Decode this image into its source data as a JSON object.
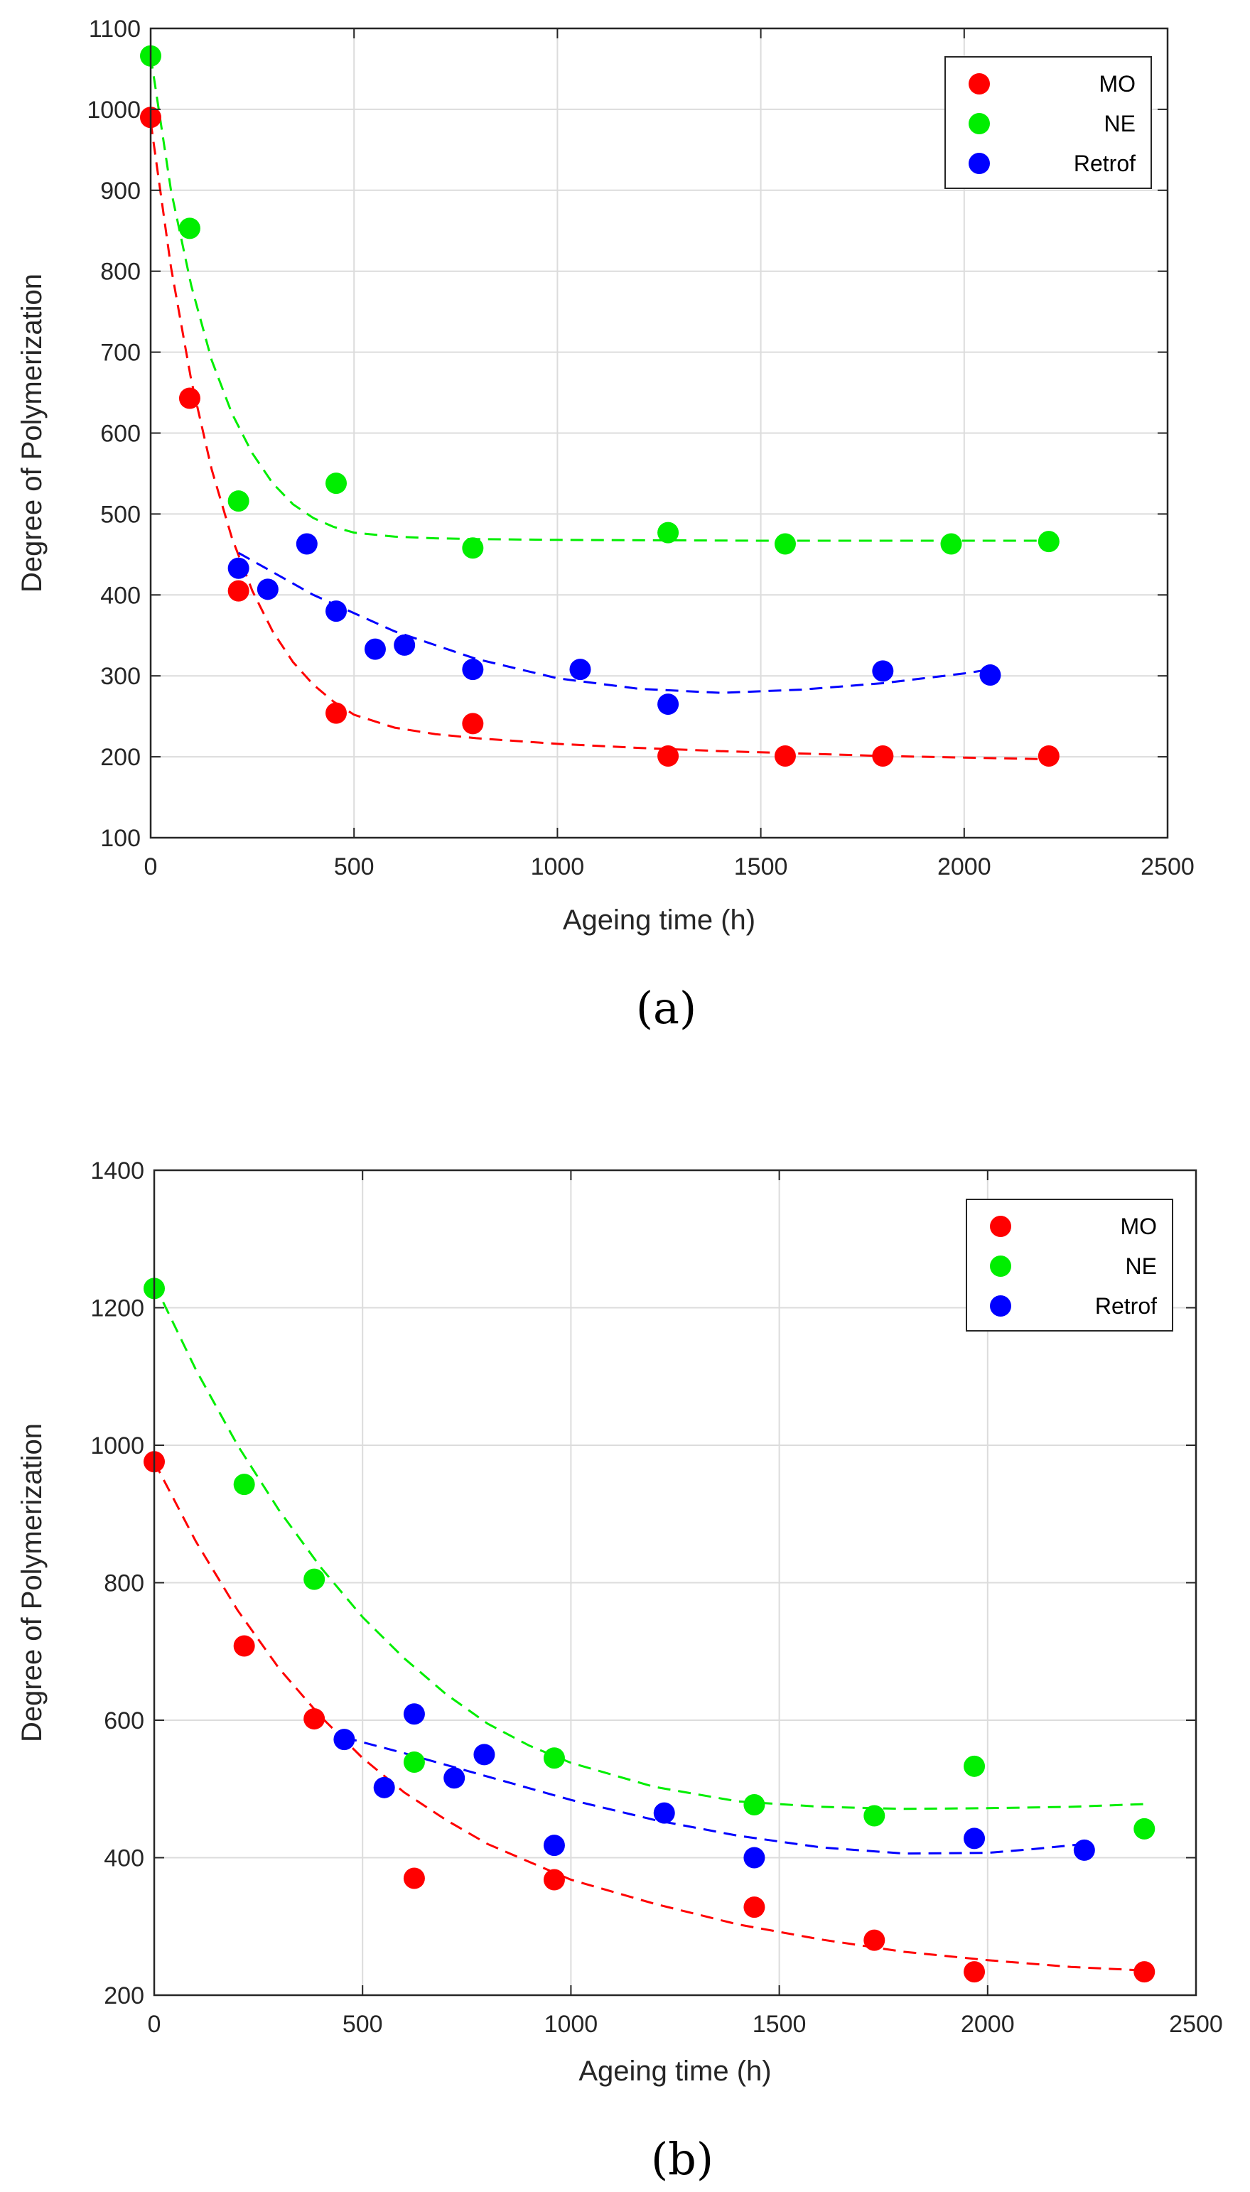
{
  "chart_data": [
    {
      "type": "scatter",
      "panel": "a",
      "caption": "(a)",
      "xlabel": "Ageing time (h)",
      "ylabel": "Degree of Polymerization",
      "xlim": [
        0,
        2500
      ],
      "ylim": [
        100,
        1100
      ],
      "xticks": [
        0,
        500,
        1000,
        1500,
        2000,
        2500
      ],
      "yticks": [
        100,
        200,
        300,
        400,
        500,
        600,
        700,
        800,
        900,
        1000,
        1100
      ],
      "grid": true,
      "legend_position": "top-right",
      "series": [
        {
          "name": "MO",
          "color": "#ff0000",
          "x": [
            0,
            96,
            216,
            456,
            792,
            1272,
            1560,
            1800,
            2208
          ],
          "y": [
            990,
            643,
            405,
            254,
            241,
            201,
            201,
            201,
            201
          ],
          "fit": [
            [
              0,
              985
            ],
            [
              50,
              805
            ],
            [
              100,
              665
            ],
            [
              150,
              555
            ],
            [
              200,
              470
            ],
            [
              250,
              405
            ],
            [
              300,
              355
            ],
            [
              350,
              317
            ],
            [
              400,
              289
            ],
            [
              450,
              268
            ],
            [
              500,
              252
            ],
            [
              600,
              236
            ],
            [
              700,
              228
            ],
            [
              800,
              223
            ],
            [
              1000,
              216
            ],
            [
              1200,
              211
            ],
            [
              1400,
              207
            ],
            [
              1600,
              204
            ],
            [
              1800,
              201
            ],
            [
              2000,
              199
            ],
            [
              2208,
              197
            ]
          ]
        },
        {
          "name": "NE",
          "color": "#00ee00",
          "x": [
            0,
            96,
            216,
            456,
            792,
            1272,
            1560,
            1968,
            2208
          ],
          "y": [
            1066,
            853,
            516,
            538,
            458,
            477,
            463,
            463,
            466
          ],
          "fit": [
            [
              0,
              1066
            ],
            [
              50,
              900
            ],
            [
              100,
              782
            ],
            [
              150,
              690
            ],
            [
              200,
              624
            ],
            [
              250,
              575
            ],
            [
              300,
              538
            ],
            [
              350,
              512
            ],
            [
              400,
              495
            ],
            [
              450,
              484
            ],
            [
              500,
              477
            ],
            [
              600,
              472
            ],
            [
              700,
              470
            ],
            [
              800,
              469
            ],
            [
              1000,
              468
            ],
            [
              1500,
              467
            ],
            [
              2000,
              467
            ],
            [
              2208,
              467
            ]
          ]
        },
        {
          "name": "Retrof",
          "color": "#0000ff",
          "x": [
            216,
            288,
            384,
            456,
            552,
            624,
            792,
            1056,
            1272,
            1800,
            2064
          ],
          "y": [
            433,
            407,
            463,
            380,
            333,
            338,
            308,
            308,
            265,
            306,
            301
          ],
          "fit": [
            [
              216,
              452
            ],
            [
              400,
              400
            ],
            [
              600,
              355
            ],
            [
              800,
              321
            ],
            [
              1000,
              297
            ],
            [
              1200,
              284
            ],
            [
              1400,
              279
            ],
            [
              1600,
              283
            ],
            [
              1800,
              291
            ],
            [
              2000,
              303
            ],
            [
              2064,
              308
            ]
          ]
        }
      ]
    },
    {
      "type": "scatter",
      "panel": "b",
      "caption": "(b)",
      "xlabel": "Ageing time (h)",
      "ylabel": "Degree of Polymerization",
      "xlim": [
        0,
        2500
      ],
      "ylim": [
        200,
        1400
      ],
      "xticks": [
        0,
        500,
        1000,
        1500,
        2000,
        2500
      ],
      "yticks": [
        200,
        400,
        600,
        800,
        1000,
        1200,
        1400
      ],
      "grid": true,
      "legend_position": "top-right",
      "series": [
        {
          "name": "MO",
          "color": "#ff0000",
          "x": [
            0,
            216,
            384,
            624,
            960,
            1440,
            1728,
            1968,
            2376
          ],
          "y": [
            976,
            708,
            602,
            370,
            368,
            328,
            280,
            234,
            234
          ],
          "fit": [
            [
              0,
              976
            ],
            [
              100,
              860
            ],
            [
              200,
              760
            ],
            [
              300,
              675
            ],
            [
              400,
              605
            ],
            [
              500,
              545
            ],
            [
              600,
              495
            ],
            [
              700,
              455
            ],
            [
              800,
              420
            ],
            [
              1000,
              368
            ],
            [
              1200,
              333
            ],
            [
              1400,
              303
            ],
            [
              1600,
              281
            ],
            [
              1800,
              263
            ],
            [
              2000,
              251
            ],
            [
              2200,
              241
            ],
            [
              2376,
              236
            ]
          ]
        },
        {
          "name": "NE",
          "color": "#00ee00",
          "x": [
            0,
            216,
            384,
            624,
            960,
            1440,
            1728,
            1968,
            2376
          ],
          "y": [
            1228,
            943,
            805,
            539,
            545,
            477,
            461,
            533,
            442
          ],
          "fit": [
            [
              0,
              1235
            ],
            [
              100,
              1110
            ],
            [
              200,
              1000
            ],
            [
              300,
              905
            ],
            [
              400,
              822
            ],
            [
              500,
              750
            ],
            [
              600,
              690
            ],
            [
              700,
              638
            ],
            [
              800,
              595
            ],
            [
              900,
              563
            ],
            [
              1000,
              538
            ],
            [
              1200,
              503
            ],
            [
              1400,
              482
            ],
            [
              1600,
              474
            ],
            [
              1800,
              471
            ],
            [
              2000,
              472
            ],
            [
              2200,
              474
            ],
            [
              2376,
              478
            ]
          ]
        },
        {
          "name": "Retrof",
          "color": "#0000ff",
          "x": [
            456,
            552,
            624,
            720,
            792,
            960,
            1224,
            1440,
            1968,
            2232
          ],
          "y": [
            572,
            502,
            609,
            516,
            550,
            418,
            465,
            400,
            428,
            411
          ],
          "fit": [
            [
              456,
              575
            ],
            [
              600,
              552
            ],
            [
              800,
              518
            ],
            [
              1000,
              484
            ],
            [
              1200,
              455
            ],
            [
              1400,
              432
            ],
            [
              1600,
              415
            ],
            [
              1800,
              406
            ],
            [
              2000,
              407
            ],
            [
              2100,
              412
            ],
            [
              2232,
              420
            ]
          ]
        }
      ]
    }
  ]
}
